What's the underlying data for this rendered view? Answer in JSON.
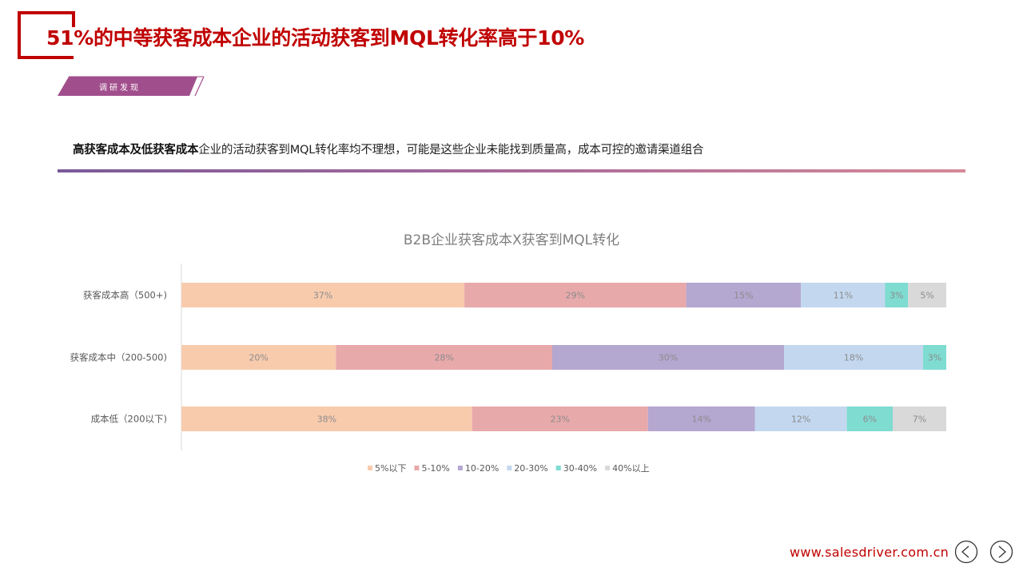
{
  "header": {
    "title": "51%的中等获客成本企业的活动获客到MQL转化率高于10%",
    "tag": "调研发现"
  },
  "subtitle": {
    "bold": "高获客成本及低获客成本",
    "rest": "企业的活动获客到MQL转化率均不理想，可能是这些企业未能找到质量高，成本可控的邀请渠道组合"
  },
  "colors": {
    "accent": "#c00000",
    "tag_bg": "#a14e8c",
    "segments": [
      "#f8cbad",
      "#e8a9ab",
      "#b4a7d0",
      "#c3d8ef",
      "#7fdcd1",
      "#d9d9d9"
    ]
  },
  "chart_data": {
    "type": "bar",
    "orientation": "horizontal",
    "stacked": true,
    "title": "B2B企业获客成本X获客到MQL转化",
    "categories": [
      "获客成本高（500+)",
      "获客成本中（200-500)",
      "成本低（200以下)"
    ],
    "series": [
      {
        "name": "5%以下",
        "values": [
          37,
          20,
          38
        ]
      },
      {
        "name": "5-10%",
        "values": [
          29,
          28,
          23
        ]
      },
      {
        "name": "10-20%",
        "values": [
          15,
          30,
          14
        ]
      },
      {
        "name": "20-30%",
        "values": [
          11,
          18,
          12
        ]
      },
      {
        "name": "30-40%",
        "values": [
          3,
          3,
          6
        ]
      },
      {
        "name": "40%以上",
        "values": [
          5,
          0,
          7
        ]
      }
    ],
    "legend_position": "bottom",
    "grid": false
  },
  "footer": {
    "url": "www.salesdriver.com.cn",
    "prev_icon": "chevron-left-icon",
    "next_icon": "chevron-right-icon"
  }
}
